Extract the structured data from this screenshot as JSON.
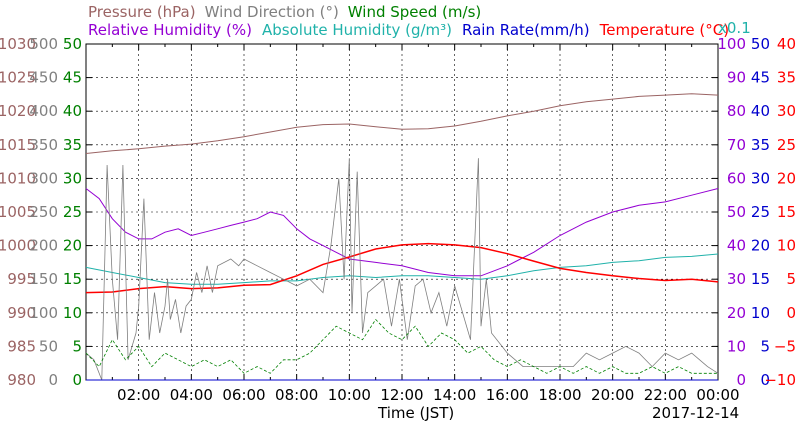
{
  "chart_data": {
    "type": "line",
    "date": "2017-12-14",
    "xlabel": "Time (JST)",
    "x_ticks": [
      "02:00",
      "04:00",
      "06:00",
      "08:00",
      "10:00",
      "12:00",
      "14:00",
      "16:00",
      "18:00",
      "20:00",
      "22:00",
      "00:00"
    ],
    "xlim": [
      0,
      24
    ],
    "grid": true,
    "legend_rows": [
      [
        {
          "text": "Pressure (hPa)",
          "color": "#9b6464"
        },
        {
          "text": "Wind Direction (°)",
          "color": "#808080"
        },
        {
          "text": "Wind Speed (m/s)",
          "color": "#008000"
        }
      ],
      [
        {
          "text": "Relative Humidity (%)",
          "color": "#9400d3"
        },
        {
          "text": "Absolute Humidity (g/m³)",
          "color": "#20b2aa"
        },
        {
          "text": "Rain Rate(mm/h)",
          "color": "#0000cd"
        },
        {
          "text": "Temperature (°C)",
          "color": "#ff0000"
        }
      ]
    ],
    "abs_humidity_scale_note": "x0.1",
    "axes": {
      "pressure": {
        "ticks": [
          "1030",
          "1025",
          "1020",
          "1015",
          "1010",
          "1005",
          "1000",
          "995",
          "990",
          "985",
          "980"
        ],
        "range": [
          980,
          1030
        ],
        "color": "#9b6464"
      },
      "wind_direction": {
        "ticks": [
          "500",
          "450",
          "400",
          "350",
          "300",
          "250",
          "200",
          "150",
          "100",
          "50",
          "0"
        ],
        "range": [
          0,
          500
        ],
        "color": "#808080"
      },
      "wind_speed": {
        "ticks": [
          "50",
          "45",
          "40",
          "35",
          "30",
          "25",
          "20",
          "15",
          "10",
          "5",
          "0"
        ],
        "range": [
          0,
          50
        ],
        "color": "#008000"
      },
      "relative_humidity": {
        "ticks": [
          "100",
          "90",
          "80",
          "70",
          "60",
          "50",
          "40",
          "30",
          "20",
          "10",
          "0"
        ],
        "range": [
          0,
          100
        ],
        "color": "#9400d3"
      },
      "rain_rate": {
        "ticks": [
          "50",
          "45",
          "40",
          "35",
          "30",
          "25",
          "20",
          "15",
          "10",
          "5",
          "0"
        ],
        "range": [
          0,
          50
        ],
        "color": "#0000cd"
      },
      "temperature": {
        "ticks": [
          "40",
          "35",
          "30",
          "25",
          "20",
          "15",
          "10",
          "5",
          "0",
          "−5",
          "−10"
        ],
        "range": [
          -10,
          40
        ],
        "color": "#ff0000"
      }
    },
    "series": [
      {
        "name": "Pressure (hPa)",
        "axis": "pressure",
        "color": "#9b6464",
        "width": 1,
        "x": [
          0,
          1,
          2,
          3,
          4,
          5,
          6,
          7,
          8,
          9,
          10,
          11,
          12,
          13,
          14,
          15,
          16,
          17,
          18,
          19,
          20,
          21,
          22,
          23,
          24
        ],
        "y": [
          1013.7,
          1014.1,
          1014.4,
          1014.8,
          1015.1,
          1015.6,
          1016.2,
          1016.9,
          1017.6,
          1018.0,
          1018.1,
          1017.7,
          1017.3,
          1017.4,
          1017.8,
          1018.5,
          1019.3,
          1020.0,
          1020.8,
          1021.4,
          1021.8,
          1022.2,
          1022.4,
          1022.6,
          1022.4
        ]
      },
      {
        "name": "Relative Humidity (%)",
        "axis": "relative_humidity",
        "color": "#9400d3",
        "width": 1,
        "x": [
          0,
          0.5,
          1,
          1.5,
          2,
          2.5,
          3,
          3.5,
          4,
          4.5,
          5,
          5.5,
          6,
          6.5,
          7,
          7.5,
          8,
          8.5,
          9,
          9.5,
          10,
          11,
          12,
          13,
          14,
          15,
          16,
          16.5,
          17,
          18,
          19,
          20,
          21,
          22,
          23,
          24
        ],
        "y": [
          57,
          54,
          48,
          44,
          42,
          42,
          44,
          45,
          43,
          44,
          45,
          46,
          47,
          48,
          50,
          49,
          45,
          42,
          40,
          38,
          36,
          35,
          34,
          32,
          31,
          31,
          34,
          36,
          38,
          43,
          47,
          50,
          52,
          53,
          55,
          57
        ]
      },
      {
        "name": "Absolute Humidity (g/m³)",
        "axis": "relative_humidity",
        "color": "#20b2aa",
        "width": 1,
        "x": [
          0,
          1,
          2,
          3,
          4,
          5,
          6,
          7,
          8,
          9,
          10,
          11,
          12,
          13,
          14,
          15,
          16,
          17,
          18,
          19,
          20,
          21,
          22,
          23,
          24
        ],
        "y": [
          33.5,
          32.0,
          30.5,
          29.0,
          28.5,
          28.5,
          29.0,
          29.5,
          29.5,
          30.5,
          31.0,
          30.5,
          31.0,
          31.0,
          30.5,
          30.0,
          31.0,
          32.5,
          33.5,
          34.0,
          35.0,
          35.5,
          36.5,
          36.8,
          37.5
        ]
      },
      {
        "name": "Temperature (°C)",
        "axis": "temperature",
        "color": "#ff0000",
        "width": 1.5,
        "x": [
          0,
          1,
          2,
          3,
          4,
          5,
          6,
          7,
          8,
          9,
          10,
          11,
          12,
          13,
          14,
          15,
          16,
          17,
          18,
          19,
          20,
          21,
          22,
          23,
          24
        ],
        "y": [
          3.0,
          3.1,
          3.6,
          3.9,
          3.6,
          3.7,
          4.1,
          4.2,
          5.5,
          7.2,
          8.3,
          9.5,
          10.1,
          10.3,
          10.1,
          9.7,
          8.8,
          7.7,
          6.6,
          6.0,
          5.5,
          5.1,
          4.8,
          5.0,
          4.6
        ]
      },
      {
        "name": "Wind Direction (°)",
        "axis": "wind_direction",
        "color": "#7f7f7f",
        "width": 0.8,
        "x": [
          0,
          0.3,
          0.6,
          0.8,
          1.0,
          1.2,
          1.4,
          1.6,
          1.9,
          2.0,
          2.2,
          2.4,
          2.6,
          2.8,
          3.0,
          3.1,
          3.2,
          3.4,
          3.6,
          3.8,
          4.0,
          4.2,
          4.4,
          4.6,
          4.8,
          5.0,
          5.5,
          5.8,
          6.0,
          6.5,
          7.0,
          7.5,
          8.0,
          8.5,
          9.0,
          9.3,
          9.6,
          9.8,
          10.0,
          10.1,
          10.3,
          10.5,
          10.7,
          11.0,
          11.3,
          11.6,
          11.9,
          12.2,
          12.5,
          12.8,
          13.1,
          13.4,
          13.7,
          14.0,
          14.3,
          14.6,
          14.9,
          15.0,
          15.2,
          15.4,
          15.8,
          16.0,
          16.3,
          16.6,
          17.0,
          17.5,
          18.0,
          18.5,
          19.0,
          19.5,
          20.0,
          20.5,
          21.0,
          21.5,
          22.0,
          22.5,
          23.0,
          23.3,
          23.6,
          24.0
        ],
        "y": [
          40,
          30,
          0,
          320,
          150,
          60,
          320,
          30,
          70,
          110,
          270,
          60,
          130,
          70,
          110,
          150,
          90,
          120,
          70,
          110,
          120,
          160,
          130,
          170,
          130,
          170,
          180,
          170,
          180,
          170,
          160,
          150,
          140,
          150,
          130,
          200,
          300,
          150,
          330,
          100,
          310,
          70,
          130,
          140,
          150,
          80,
          150,
          60,
          140,
          150,
          100,
          130,
          80,
          140,
          100,
          60,
          330,
          80,
          150,
          70,
          50,
          40,
          30,
          20,
          20,
          20,
          20,
          20,
          40,
          30,
          40,
          50,
          40,
          20,
          40,
          30,
          40,
          30,
          20,
          10
        ]
      },
      {
        "name": "Wind Speed (m/s)",
        "axis": "wind_speed",
        "color": "#008000",
        "width": 0.8,
        "x": [
          0,
          0.5,
          1.0,
          1.5,
          2.0,
          2.5,
          3.0,
          3.5,
          4.0,
          4.5,
          5.0,
          5.5,
          6.0,
          6.5,
          7.0,
          7.5,
          8.0,
          8.5,
          9.0,
          9.5,
          10.0,
          10.5,
          11.0,
          11.5,
          12.0,
          12.5,
          13.0,
          13.5,
          14.0,
          14.5,
          15.0,
          15.5,
          16.0,
          16.5,
          17.0,
          17.5,
          18.0,
          18.5,
          19.0,
          19.5,
          20.0,
          20.5,
          21.0,
          21.5,
          22.0,
          22.5,
          23.0,
          23.5,
          24.0
        ],
        "y": [
          4,
          2,
          6,
          3,
          5,
          2,
          4,
          3,
          2,
          3,
          2,
          3,
          1,
          2,
          1,
          3,
          3,
          4,
          6,
          8,
          7,
          6,
          9,
          7,
          6,
          8,
          5,
          7,
          6,
          4,
          5,
          3,
          2,
          3,
          2,
          1,
          2,
          1,
          2,
          1,
          2,
          1,
          1,
          2,
          1,
          2,
          1,
          1,
          1
        ]
      },
      {
        "name": "Rain Rate(mm/h)",
        "axis": "rain_rate",
        "color": "#0000cd",
        "width": 1,
        "x": [
          0,
          24
        ],
        "y": [
          0,
          0
        ]
      }
    ]
  }
}
